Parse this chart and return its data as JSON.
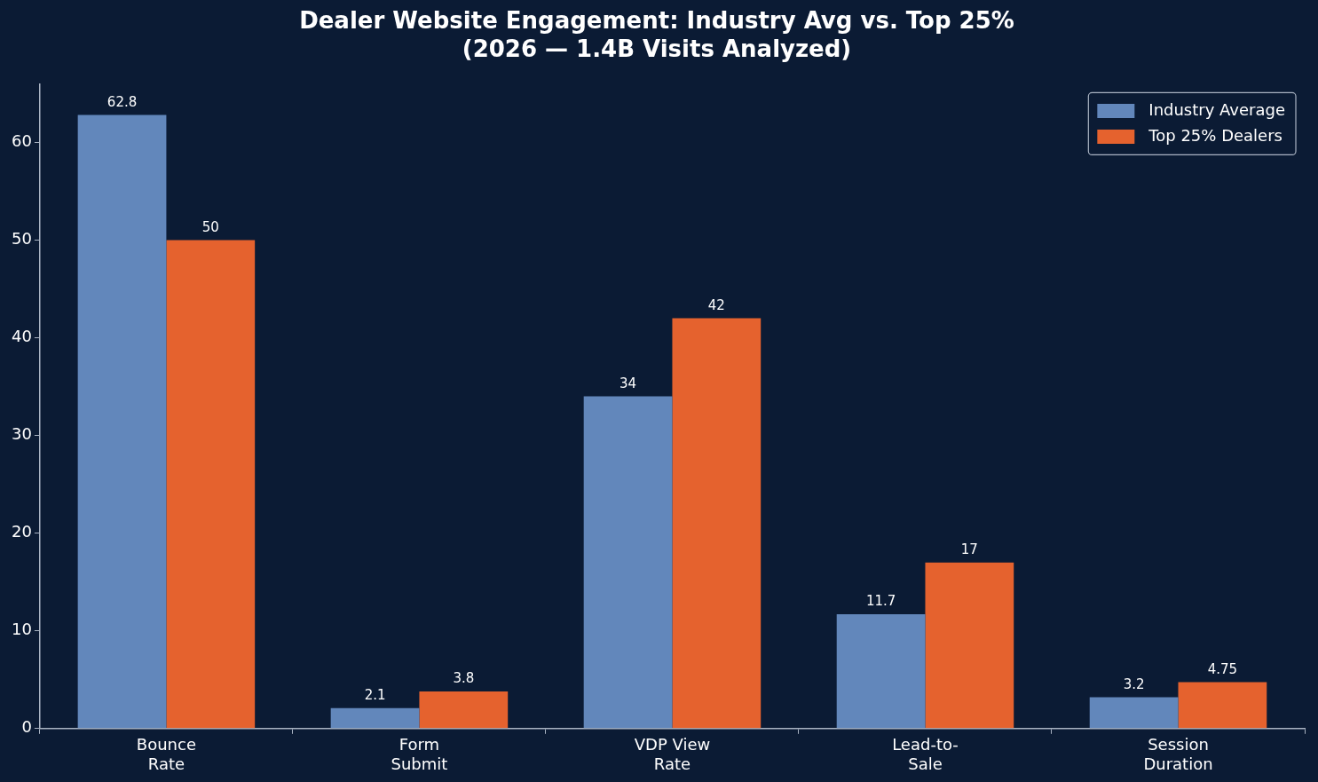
{
  "chart_data": {
    "type": "bar",
    "title": "Dealer Website Engagement: Industry Avg vs. Top 25%\n(2026 — 1.4B Visits Analyzed)",
    "categories": [
      "Bounce\nRate",
      "Form\nSubmit",
      "VDP View\nRate",
      "Lead-to-\nSale",
      "Session\nDuration"
    ],
    "series": [
      {
        "name": "Industry Average",
        "color": "#6287bb",
        "values": [
          62.8,
          2.1,
          34,
          11.7,
          3.2
        ]
      },
      {
        "name": "Top 25% Dealers",
        "color": "#e5622e",
        "values": [
          50,
          3.8,
          42,
          17,
          4.75
        ]
      }
    ],
    "ylim": [
      0,
      66
    ],
    "yticks": [
      0,
      10,
      20,
      30,
      40,
      50,
      60
    ],
    "grid": false,
    "legend": "top right",
    "data_labels": true
  }
}
